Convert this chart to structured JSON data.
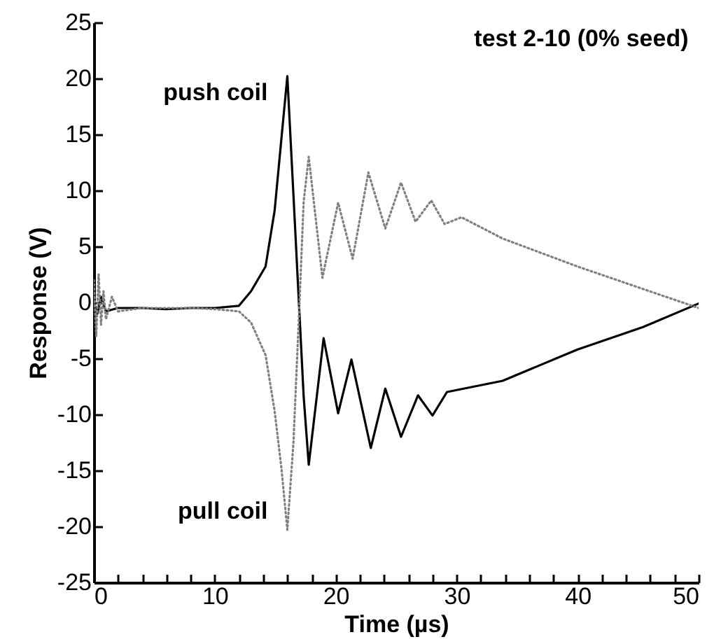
{
  "chart_data": {
    "type": "line",
    "title": "test 2-10 (0% seed)",
    "xlabel": "Time (µs)",
    "ylabel": "Response (V)",
    "xlim": [
      0,
      50
    ],
    "ylim": [
      -25,
      25
    ],
    "xticks": [
      0,
      {
        "value": 2,
        "label": null
      },
      {
        "value": 4,
        "label": null
      },
      {
        "value": 6,
        "label": null
      },
      {
        "value": 8,
        "label": null
      },
      10,
      {
        "value": 12,
        "label": null
      },
      {
        "value": 14,
        "label": null
      },
      {
        "value": 16,
        "label": null
      },
      {
        "value": 18,
        "label": null
      },
      20,
      {
        "value": 22,
        "label": null
      },
      {
        "value": 24,
        "label": null
      },
      {
        "value": 26,
        "label": null
      },
      {
        "value": 28,
        "label": null
      },
      30,
      {
        "value": 32,
        "label": null
      },
      {
        "value": 34,
        "label": null
      },
      {
        "value": 36,
        "label": null
      },
      {
        "value": 38,
        "label": null
      },
      40,
      {
        "value": 42,
        "label": null
      },
      {
        "value": 44,
        "label": null
      },
      {
        "value": 46,
        "label": null
      },
      {
        "value": 48,
        "label": null
      },
      50
    ],
    "yticks": [
      -25,
      -20,
      -15,
      -10,
      -5,
      0,
      5,
      10,
      15,
      20,
      25
    ],
    "grid": false,
    "legend": false,
    "marker": "none",
    "series": [
      {
        "name": "push coil",
        "color": "#000000",
        "line_style": "solid",
        "x": [
          0,
          0.3,
          0.6,
          1,
          2,
          4,
          6,
          8,
          10,
          12,
          13,
          14.2,
          14.95,
          15.5,
          16,
          16.5,
          16.96,
          17.35,
          17.77,
          19,
          20.2,
          21.3,
          22.9,
          24.1,
          25.4,
          26.8,
          28,
          29.2,
          33.8,
          40,
          45.4,
          50
        ],
        "values": [
          0,
          -1,
          0.5,
          -0.8,
          -0.5,
          -0.5,
          -0.6,
          -0.5,
          -0.5,
          -0.3,
          1,
          3.2,
          8.2,
          14.5,
          20.2,
          9.7,
          -0.1,
          -8.4,
          -14.5,
          -3.2,
          -9.9,
          -5.1,
          -13,
          -7.7,
          -12,
          -8.3,
          -10.1,
          -8,
          -7,
          -4.2,
          -2.2,
          -0.1
        ]
      },
      {
        "name": "pull coil",
        "color": "#808080",
        "line_style": "dotted",
        "x": [
          0,
          0.2,
          0.4,
          0.6,
          0.8,
          1,
          1.5,
          2,
          4,
          6,
          8,
          10,
          12,
          13,
          14.2,
          14.95,
          15.5,
          16,
          16.5,
          16.96,
          17.35,
          17.77,
          18.9,
          20.2,
          21.4,
          22.7,
          24.1,
          25.4,
          26.6,
          27.9,
          29,
          30.4,
          33.8,
          40,
          45.4,
          50
        ],
        "values": [
          2,
          -3,
          2.5,
          -2,
          1,
          -1.5,
          0.5,
          -0.8,
          -0.5,
          -0.5,
          -0.5,
          -0.6,
          -0.8,
          -1.8,
          -4.7,
          -9.7,
          -14.7,
          -20.3,
          -12.6,
          -1.2,
          9,
          13,
          2.2,
          8.9,
          3.9,
          11.6,
          6.6,
          10.7,
          7.2,
          9.1,
          7,
          7.6,
          5.7,
          3.2,
          1.2,
          -0.5
        ]
      }
    ]
  }
}
